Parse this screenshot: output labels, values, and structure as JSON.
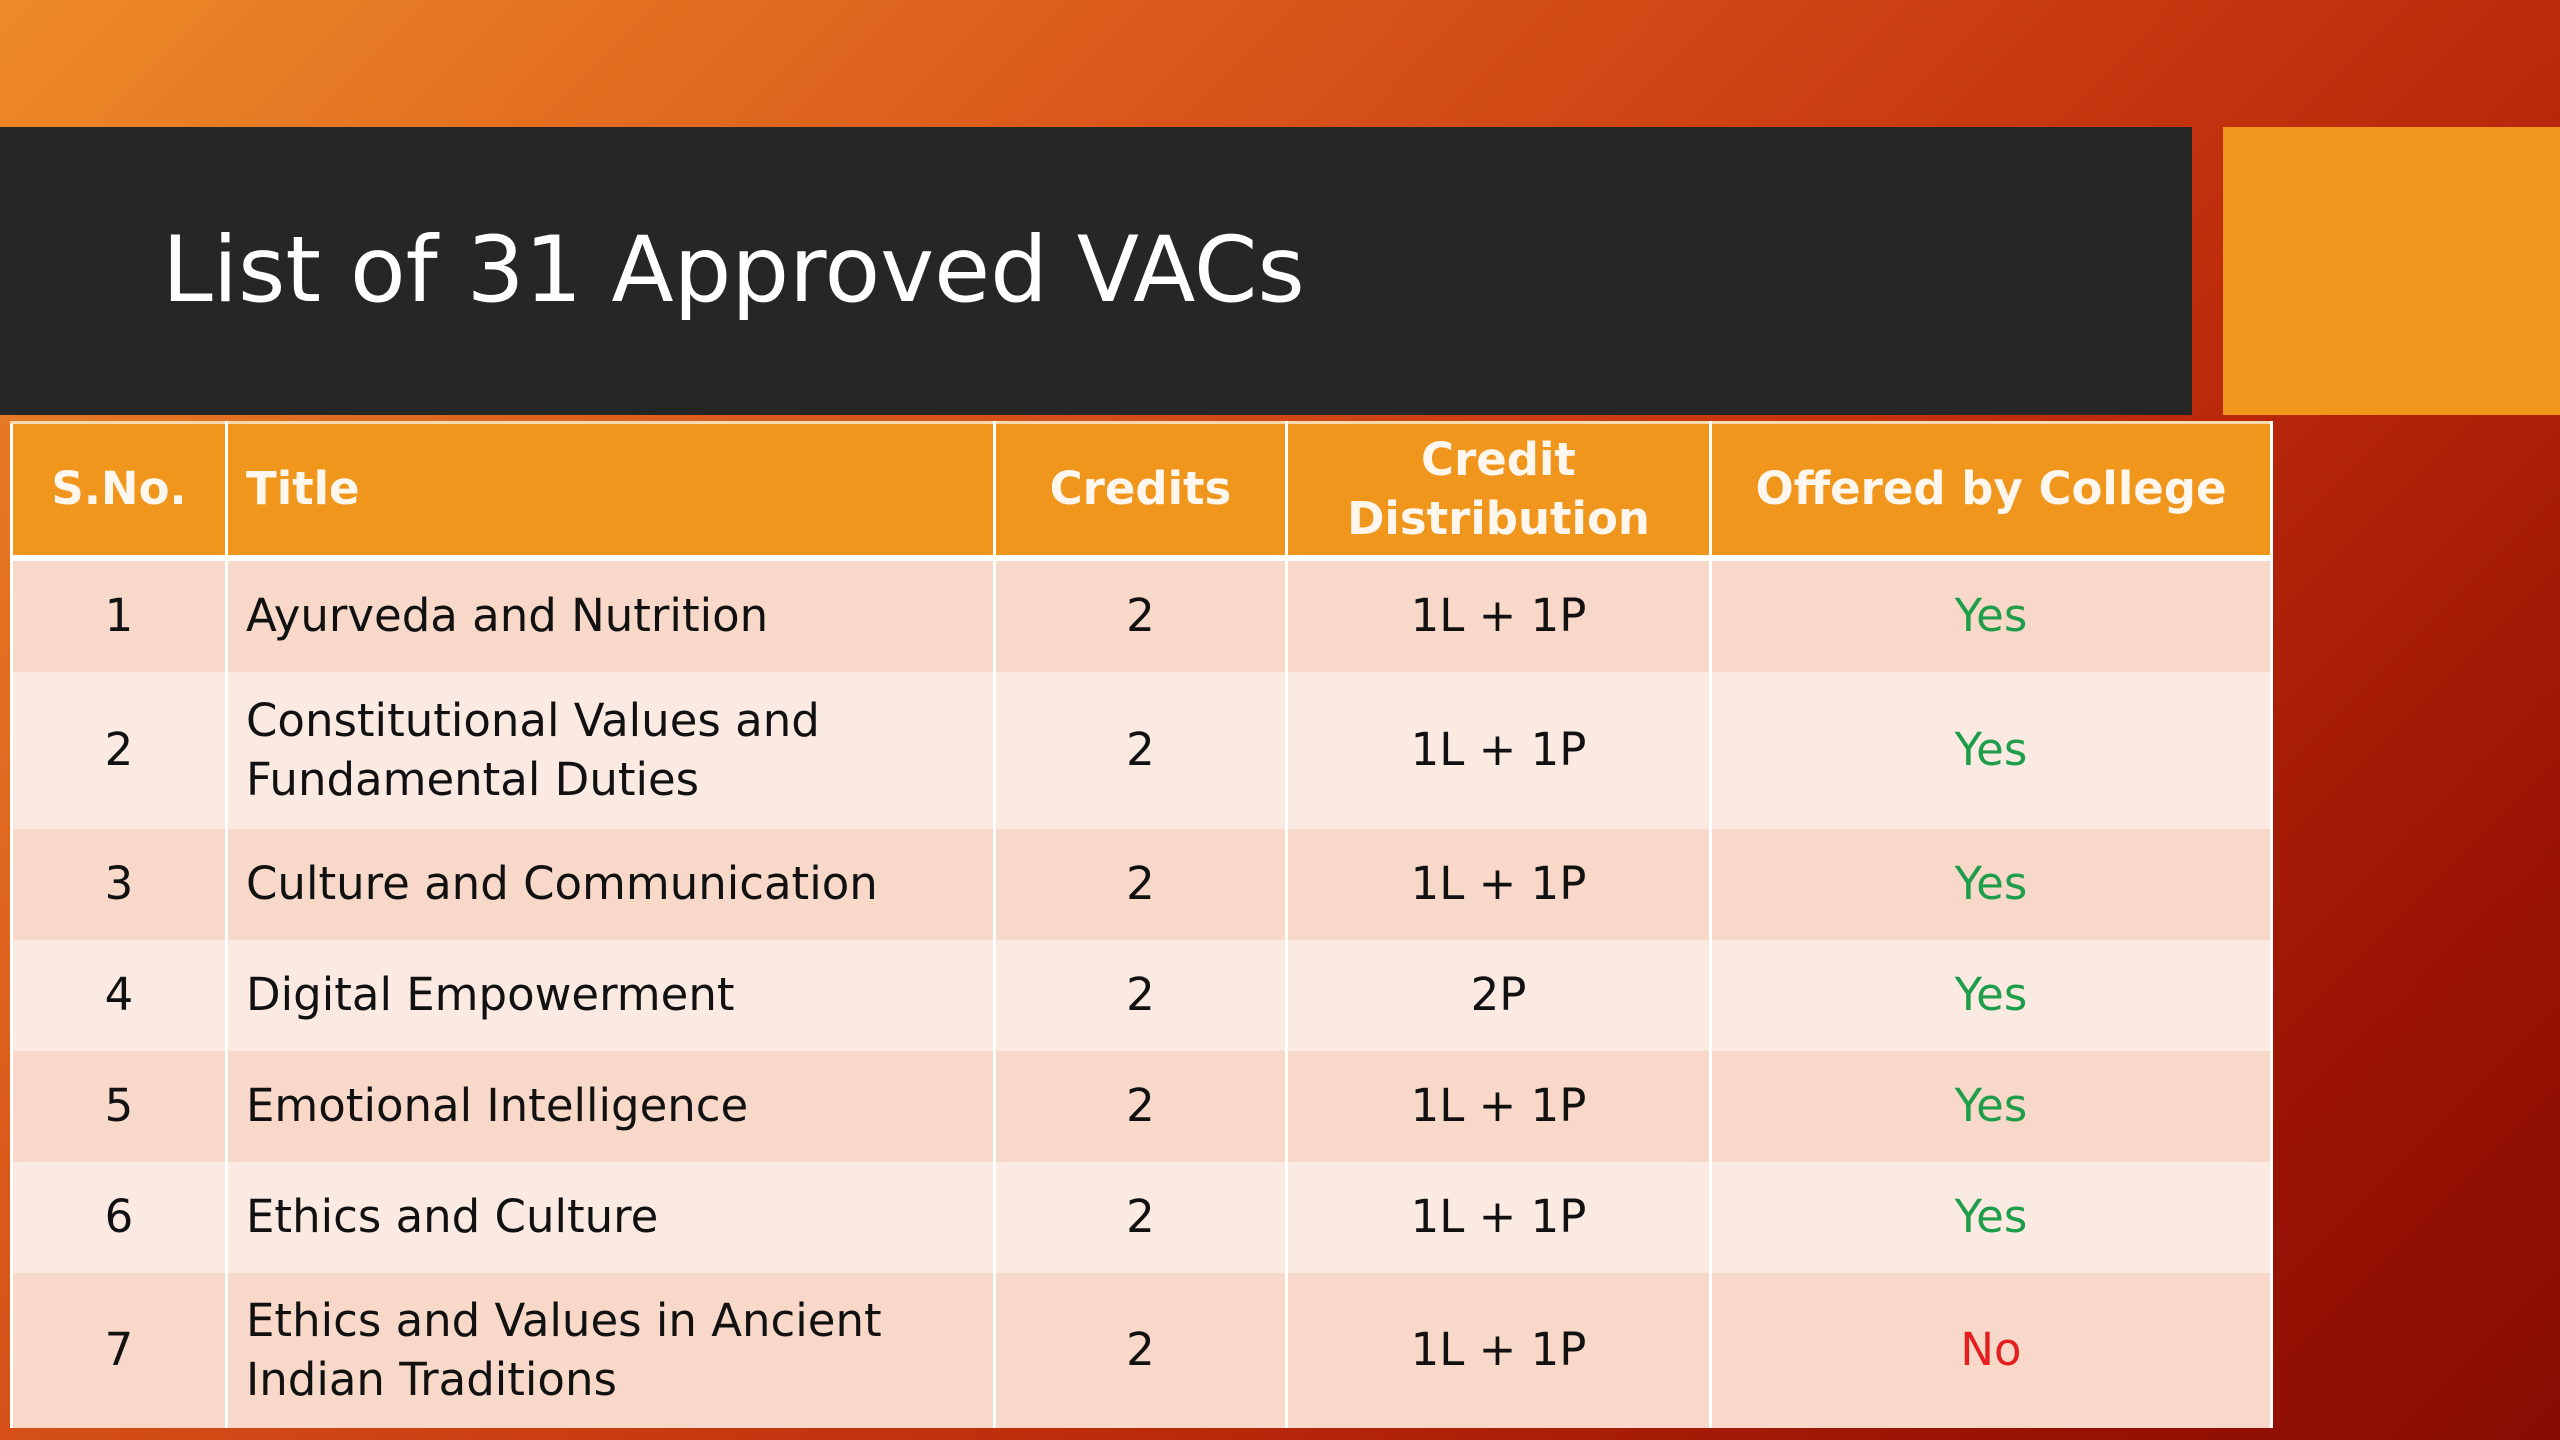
{
  "slide": {
    "title": "List of 31 Approved VACs",
    "colors": {
      "title_bar": "#262626",
      "accent": "#f0961c",
      "yes": "#1e9e4a",
      "no": "#e51f1f"
    }
  },
  "table": {
    "headers": {
      "sno": "S.No.",
      "title": "Title",
      "credits": "Credits",
      "credit_distribution": "Credit Distribution",
      "offered": "Offered by College"
    },
    "rows": [
      {
        "sno": "1",
        "title": "Ayurveda and Nutrition",
        "credits": "2",
        "distribution": "1L + 1P",
        "offered": "Yes"
      },
      {
        "sno": "2",
        "title": "Constitutional Values and Fundamental Duties",
        "credits": "2",
        "distribution": "1L + 1P",
        "offered": "Yes"
      },
      {
        "sno": "3",
        "title": "Culture and Communication",
        "credits": "2",
        "distribution": "1L + 1P",
        "offered": "Yes"
      },
      {
        "sno": "4",
        "title": "Digital Empowerment",
        "credits": "2",
        "distribution": "2P",
        "offered": "Yes"
      },
      {
        "sno": "5",
        "title": "Emotional Intelligence",
        "credits": "2",
        "distribution": "1L + 1P",
        "offered": "Yes"
      },
      {
        "sno": "6",
        "title": "Ethics and Culture",
        "credits": "2",
        "distribution": "1L + 1P",
        "offered": "Yes"
      },
      {
        "sno": "7",
        "title": "Ethics and Values in Ancient Indian Traditions",
        "credits": "2",
        "distribution": "1L + 1P",
        "offered": "No"
      }
    ]
  }
}
